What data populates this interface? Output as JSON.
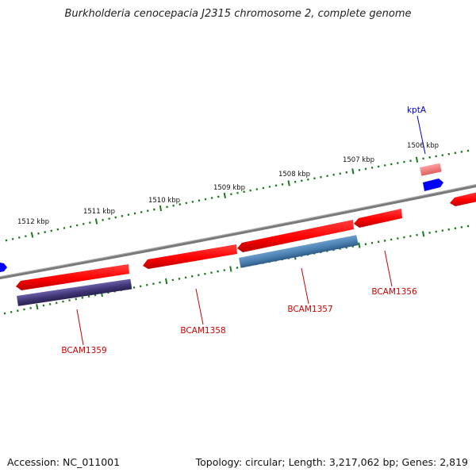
{
  "title": "Burkholderia cenocepacia J2315 chromosome 2, complete genome",
  "accession": "Accession: NC_011001",
  "summary": "Topology: circular; Length: 3,217,062 bp; Genes: 2,819",
  "colors": {
    "backbone": "#808080",
    "tick": "#1a7a1a",
    "forward_gene": "#ff0000",
    "reverse_gene_blue": "#4a7fb0",
    "reverse_gene_purple": "#4a3f80",
    "rna_gene": "#ff8080",
    "edge_gene": "#0000ff",
    "locus_label": "#cc0000",
    "gene_name_label": "#0000cc"
  },
  "scale_labels": [
    "1506 kbp",
    "1507 kbp",
    "1508 kbp",
    "1509 kbp",
    "1510 kbp",
    "1511 kbp",
    "1512 kbp"
  ],
  "gene_labels": {
    "kptA": "kptA",
    "BCAM1356": "BCAM1356",
    "BCAM1357": "BCAM1357",
    "BCAM1358": "BCAM1358",
    "BCAM1359": "BCAM1359"
  }
}
